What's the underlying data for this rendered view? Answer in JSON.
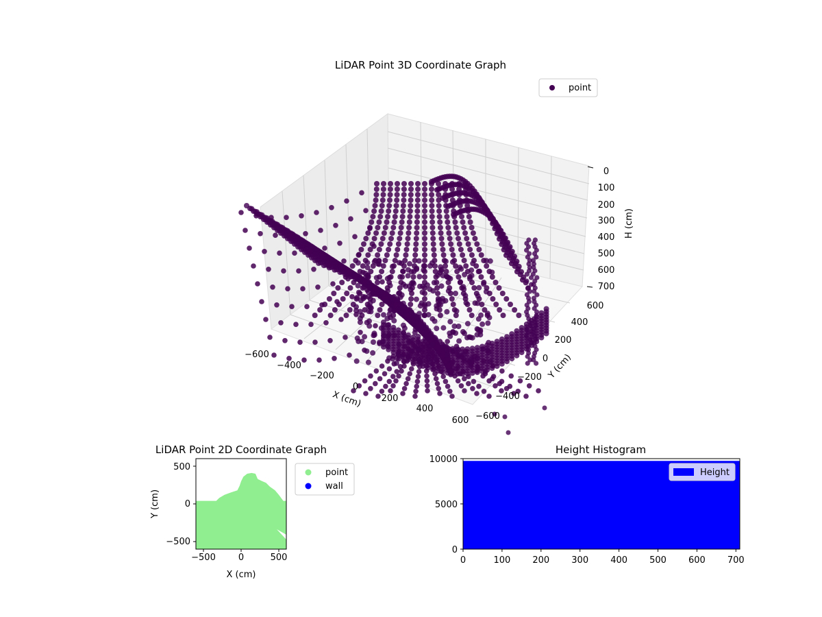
{
  "colors": {
    "point3d": "#440154",
    "point2d": "#90ee90",
    "wall": "#0000ff",
    "hist": "#0000ff"
  },
  "chart_data": [
    {
      "type": "scatter",
      "title": "LiDAR Point 3D Coordinate Graph",
      "xlabel": "X (cm)",
      "ylabel": "Y (cm)",
      "zlabel": "H (cm)",
      "xlim": [
        -600,
        600
      ],
      "ylim": [
        -600,
        600
      ],
      "zlim": [
        700,
        0
      ],
      "xticks": [
        "−600",
        "−400",
        "−200",
        "0",
        "200",
        "400",
        "600"
      ],
      "yticks": [
        "−600",
        "−400",
        "−200",
        "0",
        "200",
        "400",
        "600"
      ],
      "zticks": [
        "0",
        "100",
        "200",
        "300",
        "400",
        "500",
        "600",
        "700"
      ],
      "legend": "upper-right",
      "series": [
        {
          "name": "point",
          "color": "#440154"
        }
      ]
    },
    {
      "type": "scatter",
      "title": "LiDAR Point 2D Coordinate Graph",
      "xlabel": "X (cm)",
      "ylabel": "Y (cm)",
      "xlim": [
        -600,
        600
      ],
      "ylim": [
        -600,
        600
      ],
      "xticks": [
        "−500",
        "0",
        "500"
      ],
      "yticks": [
        "−500",
        "0",
        "500"
      ],
      "legend": "outside-right",
      "outline": [
        [
          -600,
          40
        ],
        [
          -330,
          40
        ],
        [
          -290,
          80
        ],
        [
          -220,
          120
        ],
        [
          -140,
          150
        ],
        [
          -50,
          180
        ],
        [
          -20,
          240
        ],
        [
          0,
          300
        ],
        [
          30,
          360
        ],
        [
          80,
          400
        ],
        [
          140,
          410
        ],
        [
          190,
          400
        ],
        [
          220,
          330
        ],
        [
          260,
          310
        ],
        [
          330,
          280
        ],
        [
          380,
          230
        ],
        [
          450,
          180
        ],
        [
          500,
          120
        ],
        [
          560,
          40
        ],
        [
          600,
          40
        ],
        [
          600,
          -600
        ],
        [
          -600,
          -600
        ]
      ],
      "series": [
        {
          "name": "point",
          "color": "#90ee90"
        },
        {
          "name": "wall",
          "color": "#0000ff"
        }
      ]
    },
    {
      "type": "bar",
      "title": "Height Histogram",
      "xlim": [
        0,
        710
      ],
      "ylim": [
        0,
        10000
      ],
      "xticks": [
        0,
        100,
        200,
        300,
        400,
        500,
        600,
        700
      ],
      "yticks": [
        0,
        5000,
        10000
      ],
      "bins": [
        {
          "x0": 0,
          "x1": 710,
          "value": 9750
        }
      ],
      "legend": "upper-right",
      "series": [
        {
          "name": "Height",
          "color": "#0000ff"
        }
      ]
    }
  ]
}
